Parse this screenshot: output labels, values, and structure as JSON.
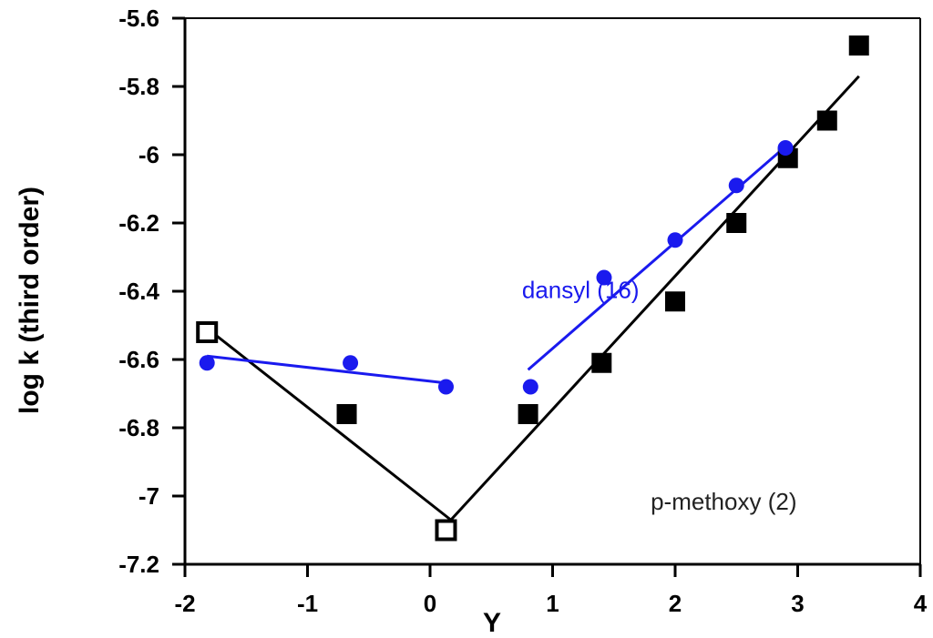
{
  "chart_data": {
    "type": "scatter",
    "title": "",
    "xlabel": "Y",
    "ylabel": "log k (third order)",
    "xlim": [
      -2,
      4
    ],
    "ylim": [
      -7.2,
      -5.6
    ],
    "xticks": [
      -2,
      -1,
      0,
      1,
      2,
      3,
      4
    ],
    "yticks": [
      -7.2,
      -7,
      -6.8,
      -6.6,
      -6.4,
      -6.2,
      -6,
      -5.8,
      -5.6
    ],
    "grid": false,
    "annotations": [
      {
        "text": "dansyl (16)",
        "x": 0.75,
        "y": -6.42,
        "color": "#1a1aee"
      },
      {
        "text": "p-methoxy (2)",
        "x": 1.8,
        "y": -7.04,
        "color": "#222222"
      }
    ],
    "series": [
      {
        "name": "p-methoxy (2)",
        "color": "#000000",
        "marker": "square",
        "points": [
          {
            "x": -1.82,
            "y": -6.52,
            "open": true
          },
          {
            "x": -0.68,
            "y": -6.76,
            "open": false
          },
          {
            "x": 0.13,
            "y": -7.1,
            "open": true
          },
          {
            "x": 0.8,
            "y": -6.76,
            "open": false
          },
          {
            "x": 1.4,
            "y": -6.61,
            "open": false
          },
          {
            "x": 2.0,
            "y": -6.43,
            "open": false
          },
          {
            "x": 2.5,
            "y": -6.2,
            "open": false
          },
          {
            "x": 2.92,
            "y": -6.01,
            "open": false
          },
          {
            "x": 3.24,
            "y": -5.9,
            "open": false
          },
          {
            "x": 3.5,
            "y": -5.68,
            "open": false
          }
        ],
        "fit_lines": [
          {
            "x": [
              -1.85,
              0.17
            ],
            "y": [
              -6.5,
              -7.07
            ]
          },
          {
            "x": [
              0.17,
              3.5
            ],
            "y": [
              -7.07,
              -5.77
            ]
          }
        ]
      },
      {
        "name": "dansyl (16)",
        "color": "#1a1aee",
        "marker": "circle",
        "points": [
          {
            "x": -1.82,
            "y": -6.61
          },
          {
            "x": -0.65,
            "y": -6.61
          },
          {
            "x": 0.13,
            "y": -6.68
          },
          {
            "x": 0.82,
            "y": -6.68
          },
          {
            "x": 1.42,
            "y": -6.36
          },
          {
            "x": 2.0,
            "y": -6.25
          },
          {
            "x": 2.5,
            "y": -6.09
          },
          {
            "x": 2.9,
            "y": -5.98
          }
        ],
        "fit_lines": [
          {
            "x": [
              -1.82,
              0.16
            ],
            "y": [
              -6.59,
              -6.67
            ]
          },
          {
            "x": [
              0.8,
              2.92
            ],
            "y": [
              -6.63,
              -5.97
            ]
          }
        ]
      }
    ]
  }
}
